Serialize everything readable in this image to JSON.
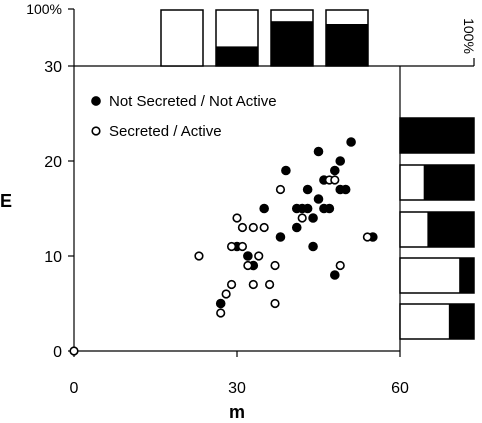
{
  "chart_data": {
    "type": "scatter",
    "xlabel": "m",
    "ylabel": "E",
    "xlim": [
      0,
      60
    ],
    "ylim": [
      0,
      30
    ],
    "xticks": [
      "0",
      "30",
      "60"
    ],
    "yticks": [
      "0",
      "10",
      "20",
      "30"
    ],
    "legend_position": "top-left",
    "series": [
      {
        "name": "Not Secreted / Not Active",
        "marker": "filled-circle",
        "color": "#000000",
        "points": [
          [
            27,
            5
          ],
          [
            30,
            11
          ],
          [
            32,
            10
          ],
          [
            33,
            9
          ],
          [
            35,
            15
          ],
          [
            39,
            19
          ],
          [
            38,
            12
          ],
          [
            41,
            13
          ],
          [
            41,
            15
          ],
          [
            42,
            15
          ],
          [
            43,
            17
          ],
          [
            43,
            15
          ],
          [
            44,
            14
          ],
          [
            44,
            11
          ],
          [
            45,
            21
          ],
          [
            45,
            16
          ],
          [
            46,
            15
          ],
          [
            46,
            18
          ],
          [
            47,
            15
          ],
          [
            48,
            8
          ],
          [
            48,
            19
          ],
          [
            49,
            20
          ],
          [
            49,
            17
          ],
          [
            50,
            17
          ],
          [
            51,
            22
          ],
          [
            55,
            12
          ]
        ]
      },
      {
        "name": "Secreted / Active",
        "marker": "open-circle",
        "color": "#000000",
        "points": [
          [
            0,
            0
          ],
          [
            23,
            10
          ],
          [
            27,
            4
          ],
          [
            28,
            6
          ],
          [
            29,
            11
          ],
          [
            29,
            7
          ],
          [
            30,
            14
          ],
          [
            31,
            13
          ],
          [
            31,
            11
          ],
          [
            32,
            9
          ],
          [
            33,
            13
          ],
          [
            33,
            7
          ],
          [
            34,
            10
          ],
          [
            35,
            13
          ],
          [
            36,
            7
          ],
          [
            37,
            5
          ],
          [
            37,
            9
          ],
          [
            38,
            17
          ],
          [
            42,
            14
          ],
          [
            47,
            18
          ],
          [
            48,
            18
          ],
          [
            49,
            9
          ],
          [
            54,
            12
          ]
        ]
      }
    ],
    "top_marginal": {
      "scale_label": "100%",
      "bins": [
        {
          "filled_fraction": 0.0
        },
        {
          "filled_fraction": 0.35
        },
        {
          "filled_fraction": 0.8
        },
        {
          "filled_fraction": 0.75
        }
      ]
    },
    "right_marginal": {
      "scale_label": "100%",
      "bins": [
        {
          "filled_fraction": 1.0
        },
        {
          "filled_fraction": 0.68
        },
        {
          "filled_fraction": 0.63
        },
        {
          "filled_fraction": 0.2
        },
        {
          "filled_fraction": 0.34
        }
      ]
    }
  }
}
